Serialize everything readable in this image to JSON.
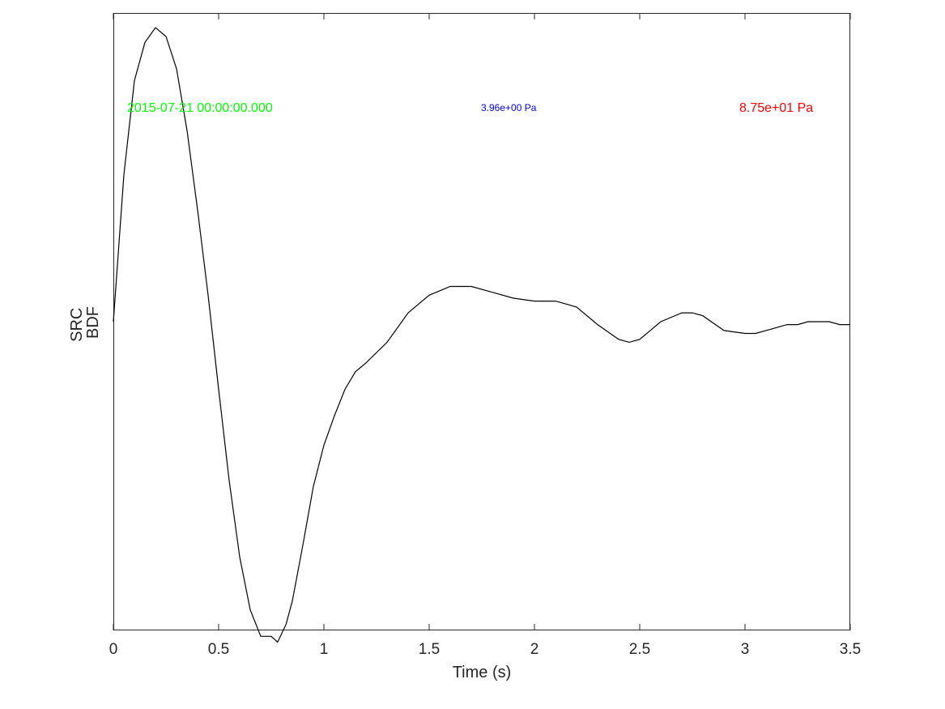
{
  "chart_data": {
    "type": "line",
    "xlabel": "Time (s)",
    "ylabel_lines": [
      "SRC",
      "BDF"
    ],
    "xlim": [
      0,
      3.5
    ],
    "ylim": [
      -1.05,
      1.05
    ],
    "x_ticks": [
      0,
      0.5,
      1,
      1.5,
      2,
      2.5,
      3,
      3.5
    ],
    "x_tick_labels": [
      "0",
      "0.5",
      "1",
      "1.5",
      "2",
      "2.5",
      "3",
      "3.5"
    ],
    "grid": false,
    "series": [
      {
        "color": "#000000",
        "x": [
          0,
          0.05,
          0.1,
          0.15,
          0.2,
          0.25,
          0.3,
          0.35,
          0.4,
          0.45,
          0.5,
          0.55,
          0.6,
          0.65,
          0.7,
          0.75,
          0.78,
          0.82,
          0.85,
          0.9,
          0.95,
          1.0,
          1.05,
          1.1,
          1.15,
          1.2,
          1.3,
          1.4,
          1.5,
          1.6,
          1.7,
          1.8,
          1.9,
          2.0,
          2.1,
          2.15,
          2.2,
          2.3,
          2.4,
          2.45,
          2.5,
          2.55,
          2.6,
          2.7,
          2.75,
          2.8,
          2.9,
          3.0,
          3.05,
          3.1,
          3.2,
          3.25,
          3.3,
          3.35,
          3.4,
          3.45,
          3.5
        ],
        "y": [
          0.0,
          0.5,
          0.82,
          0.95,
          1.0,
          0.97,
          0.86,
          0.65,
          0.38,
          0.09,
          -0.23,
          -0.54,
          -0.8,
          -0.98,
          -1.07,
          -1.07,
          -1.09,
          -1.03,
          -0.95,
          -0.76,
          -0.56,
          -0.42,
          -0.32,
          -0.23,
          -0.17,
          -0.14,
          -0.07,
          0.03,
          0.09,
          0.12,
          0.12,
          0.1,
          0.08,
          0.07,
          0.07,
          0.06,
          0.05,
          -0.01,
          -0.06,
          -0.07,
          -0.06,
          -0.03,
          0.0,
          0.03,
          0.03,
          0.02,
          -0.03,
          -0.04,
          -0.04,
          -0.03,
          -0.01,
          -0.01,
          0.0,
          0.0,
          0.0,
          -0.01,
          -0.01
        ]
      }
    ],
    "annotations": [
      {
        "text": "2015-07-21 00:00:00.000",
        "color": "#00ff00"
      },
      {
        "text": "3.96e+00 Pa",
        "color": "#0000ff"
      },
      {
        "text": "8.75e+01 Pa",
        "color": "#ff0000"
      }
    ]
  }
}
